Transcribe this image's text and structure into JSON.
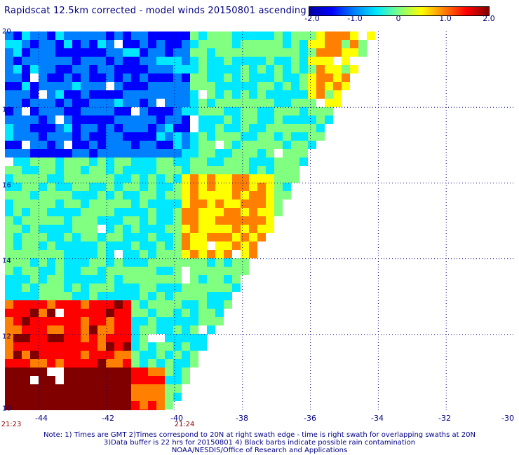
{
  "title": "Rapidscat 12.5km corrected - model winds 20150801 ascending",
  "colorbar": {
    "range": [
      -2.0,
      2.0
    ],
    "stops": [
      "#0000a0",
      "#0000ff",
      "#0080ff",
      "#00e8ff",
      "#80ff80",
      "#ffff00",
      "#ff8000",
      "#ff0000",
      "#800000"
    ],
    "labels": [
      "-2.0",
      "-1.0",
      "0",
      "1.0",
      "2.0"
    ]
  },
  "map": {
    "y_ticks": [
      "20",
      "18",
      "16",
      "14",
      "12",
      "10"
    ],
    "x_ticks": [
      "-44",
      "-42",
      "-40",
      "-38",
      "-36",
      "-34",
      "-32",
      "-30"
    ],
    "lon_range": [
      -45,
      -30
    ],
    "lat_range": [
      10,
      20
    ],
    "grid_style": "dotted",
    "swath_edge_top_lon": -34.2,
    "swath_edge_bottom_lon": -40.3,
    "missing_color": "#ffffff"
  },
  "times": {
    "left": "21:23",
    "right": "21:24"
  },
  "notes": {
    "line1": "Note: 1) Times are GMT 2)Times correspond to 20N at right swath edge - time is right swath for overlapping swaths at 20N",
    "line2": "3)Data buffer is 22 hrs for 20150801 4) Black barbs indicate possible rain contamination",
    "line3": "NOAA/NESDIS/Office of Research and Applications"
  }
}
